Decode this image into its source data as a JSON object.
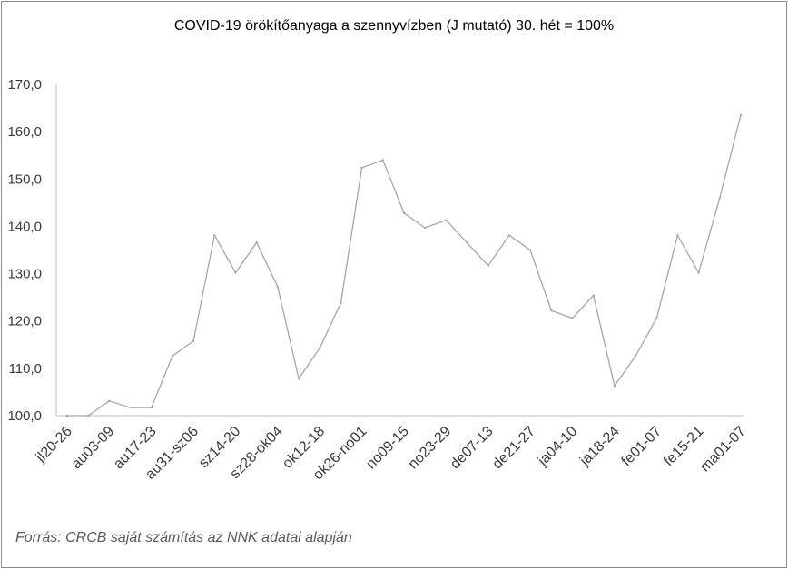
{
  "chart_data": {
    "type": "line",
    "title": "COVID-19 örökítőanyaga a szennyvízben (J mutató) 30. hét = 100%",
    "xlabel": "",
    "ylabel": "",
    "ylim": [
      100,
      170
    ],
    "yticks": [
      "100,0",
      "110,0",
      "120,0",
      "130,0",
      "140,0",
      "150,0",
      "160,0",
      "170,0"
    ],
    "tick_labels": [
      "jl20-26",
      "au03-09",
      "au17-23",
      "au31-sz06",
      "sz14-20",
      "sz28-ok04",
      "ok12-18",
      "ok26-no01",
      "no09-15",
      "no23-29",
      "de07-13",
      "de21-27",
      "ja04-10",
      "ja18-24",
      "fe01-07",
      "fe15-21",
      "ma01-07"
    ],
    "grid": false,
    "legend": "none",
    "line_color": "#a6a6a6",
    "series": [
      {
        "values": [
          100.0,
          100.0,
          103.1,
          101.7,
          101.7,
          112.6,
          115.8,
          138.1,
          130.2,
          136.6,
          127.2,
          107.8,
          114.3,
          123.8,
          152.4,
          154.0,
          142.8,
          139.7,
          141.3,
          136.5,
          131.7,
          138.1,
          135.0,
          122.2,
          120.6,
          125.4,
          106.3,
          112.6,
          120.6,
          138.1,
          130.2,
          146.0,
          163.5
        ]
      }
    ]
  },
  "source": "Forrás: CRCB saját számítás az NNK adatai alapján"
}
